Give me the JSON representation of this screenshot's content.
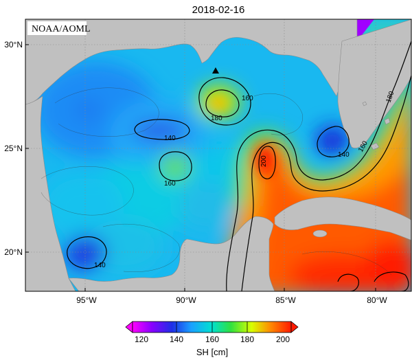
{
  "title": "2018-02-16",
  "credit": "NOAA/AOML",
  "lat_labels": [
    "30°N",
    "25°N",
    "20°N"
  ],
  "lon_labels": [
    "95°W",
    "90°W",
    "85°W",
    "80°W"
  ],
  "contour_labels": [
    "140",
    "140",
    "140",
    "160",
    "160",
    "160",
    "180",
    "180",
    "200"
  ],
  "colorbar": {
    "label": "SH [cm]",
    "ticks": [
      "120",
      "140",
      "160",
      "180",
      "200"
    ],
    "range": [
      120,
      200
    ]
  },
  "colors": {
    "land": "#c0c0c0",
    "sh_120": "#ff00ff",
    "sh_140": "#1e2fe6",
    "sh_160": "#00e0d0",
    "sh_180": "#d8ff00",
    "sh_200": "#ff1a00"
  },
  "markers": [
    {
      "icon": "triangle-marker-icon"
    }
  ]
}
